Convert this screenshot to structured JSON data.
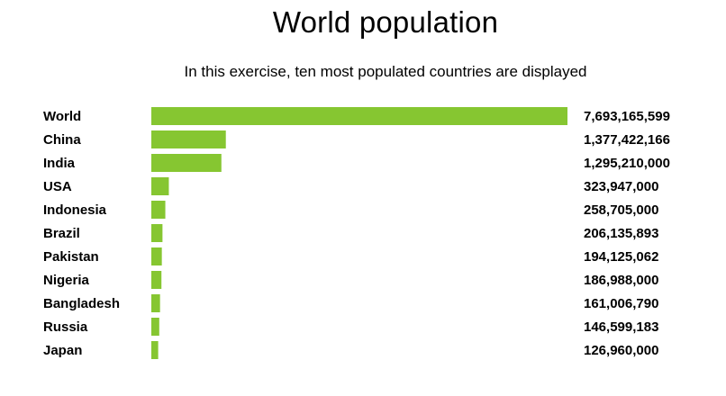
{
  "header": {
    "title": "World population",
    "subtitle": "In this exercise, ten most populated countries are displayed"
  },
  "colors": {
    "bar": "#86c631",
    "text": "#000000",
    "background": "#ffffff"
  },
  "chart_data": {
    "type": "bar",
    "orientation": "horizontal",
    "title": "World population",
    "subtitle": "In this exercise, ten most populated countries are displayed",
    "xlabel": "",
    "ylabel": "",
    "grid": false,
    "legend": "none",
    "categories": [
      "World",
      "China",
      "India",
      "USA",
      "Indonesia",
      "Brazil",
      "Pakistan",
      "Nigeria",
      "Bangladesh",
      "Russia",
      "Japan"
    ],
    "values": [
      7693165599,
      1377422166,
      1295210000,
      323947000,
      258705000,
      206135893,
      194125062,
      186988000,
      161006790,
      146599183,
      126960000
    ],
    "value_labels": [
      "7,693,165,599",
      "1,377,422,166",
      "1,295,210,000",
      "323,947,000",
      "258,705,000",
      "206,135,893",
      "194,125,062",
      "186,988,000",
      "161,006,790",
      "146,599,183",
      "126,960,000"
    ],
    "xlim": [
      0,
      7693165599
    ]
  }
}
